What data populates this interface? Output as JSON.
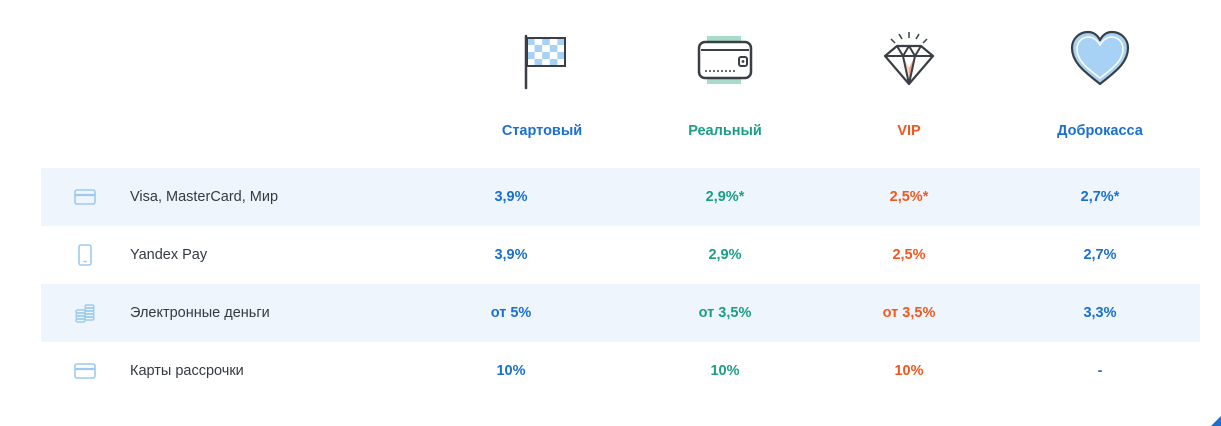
{
  "plans": [
    {
      "name": "Стартовый",
      "icon": "checkered-flag-icon",
      "color": "#1a6fcf"
    },
    {
      "name": "Реальный",
      "icon": "wallet-icon",
      "color": "#1a9e86"
    },
    {
      "name": "VIP",
      "icon": "diamond-icon",
      "color": "#f2571d"
    },
    {
      "name": "Доброкасса",
      "icon": "heart-icon",
      "color": "#1a6fcf"
    }
  ],
  "rows": [
    {
      "label": "Visa, MasterCard, Мир",
      "icon": "credit-card-icon",
      "values": [
        "3,9%",
        "2,9%*",
        "2,5%*",
        "2,7%*"
      ]
    },
    {
      "label": "Yandex Pay",
      "icon": "smartphone-icon",
      "values": [
        "3,9%",
        "2,9%",
        "2,5%",
        "2,7%"
      ]
    },
    {
      "label": "Электронные деньги",
      "icon": "coins-icon",
      "values": [
        "от 5%",
        "от 3,5%",
        "от 3,5%",
        "3,3%"
      ]
    },
    {
      "label": "Карты рассрочки",
      "icon": "credit-card-icon",
      "values": [
        "10%",
        "10%",
        "10%",
        "-"
      ]
    }
  ],
  "colors": {
    "row_shade": "#eef5fc",
    "row_icon": "#9ccbf0",
    "text": "#333a40"
  }
}
